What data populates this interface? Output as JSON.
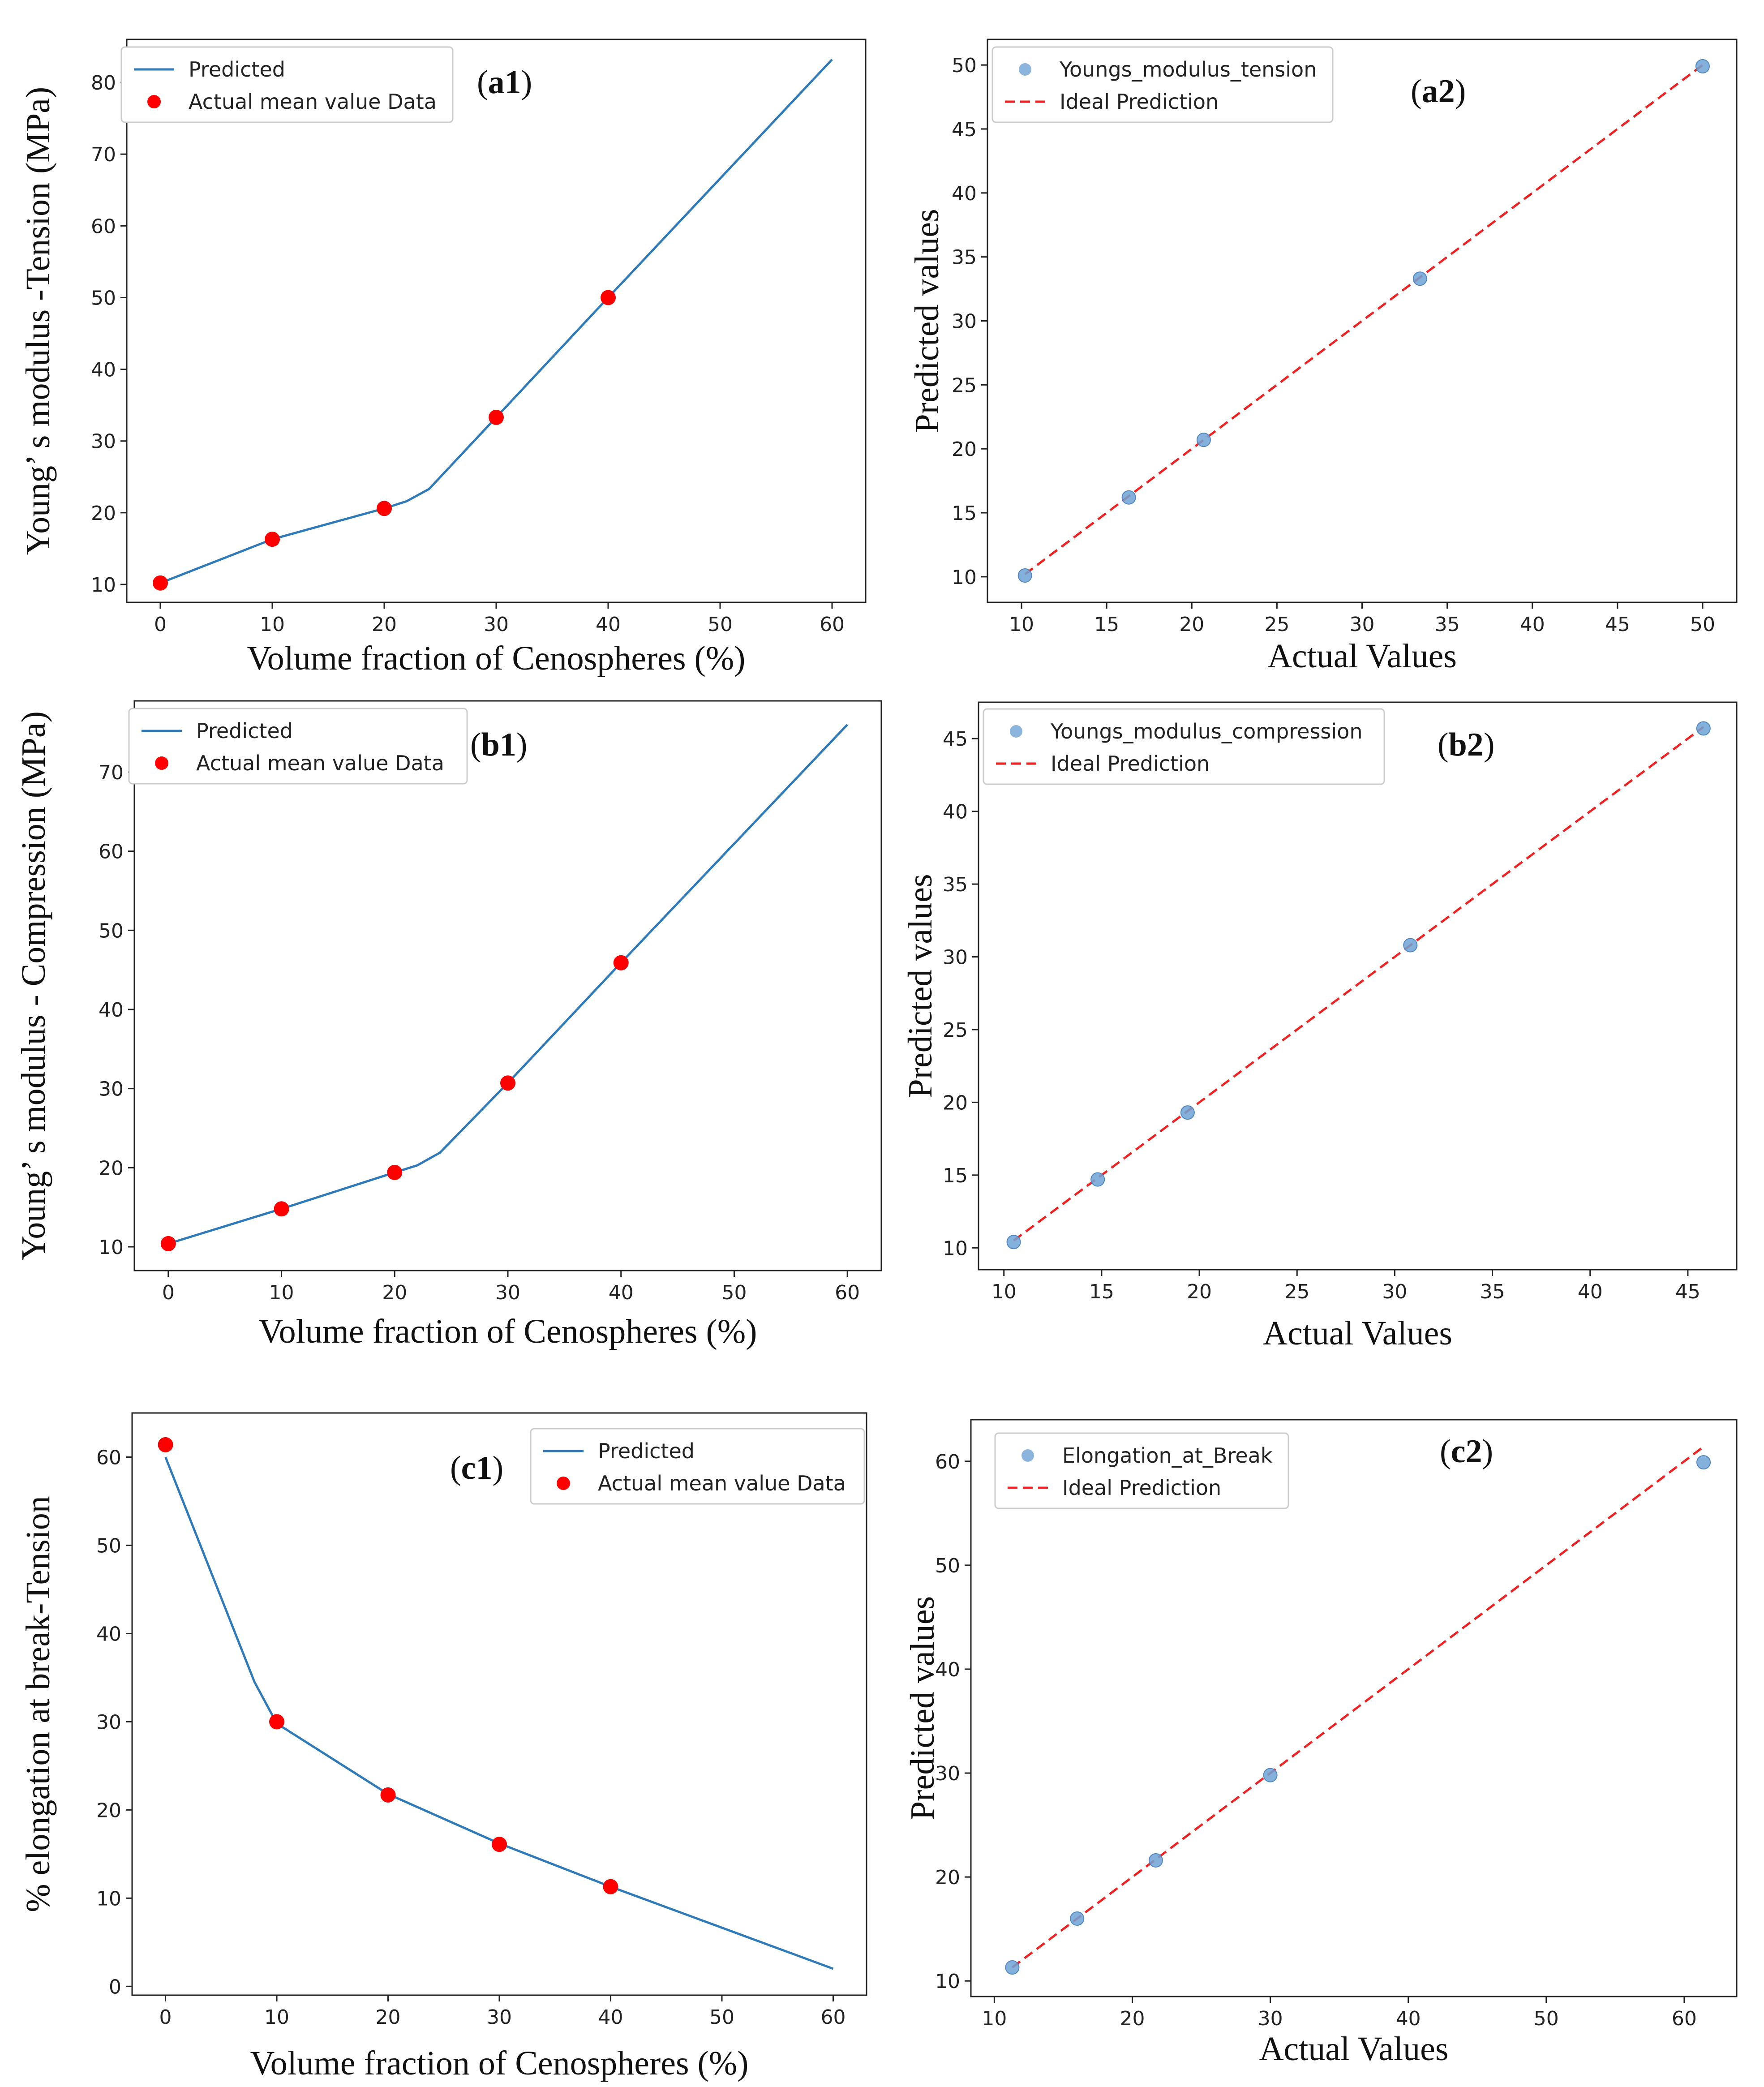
{
  "figure": {
    "colors": {
      "predicted_line": "#2f7ab8",
      "actual_marker": "#ff0000",
      "scatter_marker": "#6fa3d6",
      "ideal_line": "#ee2222",
      "axes": "#222222",
      "legend_border": "#cccccc"
    }
  },
  "chart_data": [
    {
      "id": "a1",
      "type": "line",
      "panel_label": "a1",
      "xlabel": "Volume fraction of Cenospheres (%)",
      "ylabel": "Young’ s modulus -Tension (MPa)",
      "xlim": [
        -3,
        63
      ],
      "ylim": [
        7.5,
        86
      ],
      "xticks": [
        0,
        10,
        20,
        30,
        40,
        50,
        60
      ],
      "yticks": [
        10,
        20,
        30,
        40,
        50,
        60,
        70,
        80
      ],
      "legend_position": "top-left",
      "series": [
        {
          "name": "Predicted",
          "kind": "line",
          "points": [
            [
              0,
              10.2
            ],
            [
              10,
              16.3
            ],
            [
              20,
              20.6
            ],
            [
              22,
              21.6
            ],
            [
              24,
              23.3
            ],
            [
              30,
              33.3
            ],
            [
              40,
              50.0
            ],
            [
              60,
              83.2
            ]
          ]
        },
        {
          "name": "Actual mean value Data",
          "kind": "marker",
          "points": [
            [
              0,
              10.2
            ],
            [
              10,
              16.3
            ],
            [
              20,
              20.6
            ],
            [
              30,
              33.3
            ],
            [
              40,
              50.0
            ]
          ]
        }
      ]
    },
    {
      "id": "a2",
      "type": "scatter",
      "panel_label": "a2",
      "xlabel": "Actual Values",
      "ylabel": "Predicted values",
      "xlim": [
        8.0,
        52.0
      ],
      "ylim": [
        8.0,
        52.0
      ],
      "xticks": [
        10,
        15,
        20,
        25,
        30,
        35,
        40,
        45,
        50
      ],
      "yticks": [
        10,
        15,
        20,
        25,
        30,
        35,
        40,
        45,
        50
      ],
      "legend_position": "top-left",
      "series": [
        {
          "name": "Youngs_modulus_tension",
          "kind": "scatter",
          "points": [
            [
              10.2,
              10.1
            ],
            [
              16.3,
              16.2
            ],
            [
              20.7,
              20.7
            ],
            [
              33.4,
              33.3
            ],
            [
              50.0,
              49.9
            ]
          ]
        },
        {
          "name": "Ideal Prediction",
          "kind": "dashed",
          "points": [
            [
              10.2,
              10.2
            ],
            [
              50.0,
              50.0
            ]
          ]
        }
      ]
    },
    {
      "id": "b1",
      "type": "line",
      "panel_label": "b1",
      "xlabel": "Volume fraction of Cenospheres (%)",
      "ylabel": "Young’ s modulus - Compression (MPa)",
      "xlim": [
        -3,
        63
      ],
      "ylim": [
        7.0,
        79.0
      ],
      "xticks": [
        0,
        10,
        20,
        30,
        40,
        50,
        60
      ],
      "yticks": [
        10,
        20,
        30,
        40,
        50,
        60,
        70
      ],
      "legend_position": "top-left",
      "series": [
        {
          "name": "Predicted",
          "kind": "line",
          "points": [
            [
              0,
              10.4
            ],
            [
              10,
              14.8
            ],
            [
              20,
              19.4
            ],
            [
              22,
              20.3
            ],
            [
              24,
              21.9
            ],
            [
              30,
              30.7
            ],
            [
              40,
              45.9
            ],
            [
              60,
              76.0
            ]
          ]
        },
        {
          "name": "Actual mean value Data",
          "kind": "marker",
          "points": [
            [
              0,
              10.4
            ],
            [
              10,
              14.8
            ],
            [
              20,
              19.4
            ],
            [
              30,
              30.7
            ],
            [
              40,
              45.9
            ]
          ]
        }
      ]
    },
    {
      "id": "b2",
      "type": "scatter",
      "panel_label": "b2",
      "xlabel": "Actual Values",
      "ylabel": "Predicted values",
      "xlim": [
        8.7,
        47.5
      ],
      "ylim": [
        8.5,
        47.5
      ],
      "xticks": [
        10,
        15,
        20,
        25,
        30,
        35,
        40,
        45
      ],
      "yticks": [
        10,
        15,
        20,
        25,
        30,
        35,
        40,
        45
      ],
      "legend_position": "top-left",
      "series": [
        {
          "name": "Youngs_modulus_compression",
          "kind": "scatter",
          "points": [
            [
              10.5,
              10.4
            ],
            [
              14.8,
              14.7
            ],
            [
              19.4,
              19.3
            ],
            [
              30.8,
              30.8
            ],
            [
              45.8,
              45.7
            ]
          ]
        },
        {
          "name": "Ideal Prediction",
          "kind": "dashed",
          "points": [
            [
              10.5,
              10.5
            ],
            [
              45.8,
              45.8
            ]
          ]
        }
      ]
    },
    {
      "id": "c1",
      "type": "line",
      "panel_label": "c1",
      "xlabel": "Volume fraction of Cenospheres (%)",
      "ylabel": "% elongation at break-Tension",
      "xlim": [
        -3,
        63
      ],
      "ylim": [
        -1.0,
        65.0
      ],
      "xticks": [
        0,
        10,
        20,
        30,
        40,
        50,
        60
      ],
      "yticks": [
        0,
        10,
        20,
        30,
        40,
        50,
        60
      ],
      "legend_position": "top-right",
      "series": [
        {
          "name": "Predicted",
          "kind": "line",
          "points": [
            [
              0,
              60.0
            ],
            [
              8,
              34.5
            ],
            [
              10,
              29.8
            ],
            [
              20,
              21.8
            ],
            [
              30,
              16.2
            ],
            [
              40,
              11.3
            ],
            [
              60,
              2.0
            ]
          ]
        },
        {
          "name": "Actual mean value Data",
          "kind": "marker",
          "points": [
            [
              0,
              61.4
            ],
            [
              10,
              30.0
            ],
            [
              20,
              21.7
            ],
            [
              30,
              16.1
            ],
            [
              40,
              11.3
            ]
          ]
        }
      ]
    },
    {
      "id": "c2",
      "type": "scatter",
      "panel_label": "c2",
      "xlabel": "Actual Values",
      "ylabel": "Predicted values",
      "xlim": [
        8.3,
        63.8
      ],
      "ylim": [
        8.5,
        64.0
      ],
      "xticks": [
        10,
        20,
        30,
        40,
        50,
        60
      ],
      "yticks": [
        10,
        20,
        30,
        40,
        50,
        60
      ],
      "legend_position": "top-left",
      "series": [
        {
          "name": "Elongation_at_Break",
          "kind": "scatter",
          "points": [
            [
              11.3,
              11.3
            ],
            [
              16.0,
              16.0
            ],
            [
              21.7,
              21.6
            ],
            [
              30.0,
              29.8
            ],
            [
              61.4,
              59.9
            ]
          ]
        },
        {
          "name": "Ideal Prediction",
          "kind": "dashed",
          "points": [
            [
              11.3,
              11.3
            ],
            [
              61.4,
              61.4
            ]
          ]
        }
      ]
    }
  ]
}
